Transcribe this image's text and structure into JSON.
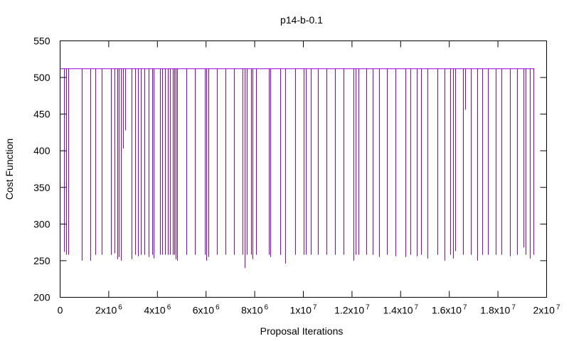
{
  "chart_data": {
    "type": "line",
    "title": "p14-b-0.1",
    "xlabel": "Proposal Iterations",
    "ylabel": "Cost Function",
    "xlim": [
      0,
      20000000
    ],
    "ylim": [
      200,
      550
    ],
    "grid": false,
    "legend": "none",
    "series_color": "#9400d3",
    "baseline_value": 512,
    "x_end": 19500000,
    "x_ticks": [
      {
        "value": 0,
        "base": "0",
        "exp": ""
      },
      {
        "value": 2000000,
        "base": "2x10",
        "exp": "6"
      },
      {
        "value": 4000000,
        "base": "4x10",
        "exp": "6"
      },
      {
        "value": 6000000,
        "base": "6x10",
        "exp": "6"
      },
      {
        "value": 8000000,
        "base": "8x10",
        "exp": "6"
      },
      {
        "value": 10000000,
        "base": "1x10",
        "exp": "7"
      },
      {
        "value": 12000000,
        "base": "1.2x10",
        "exp": "7"
      },
      {
        "value": 14000000,
        "base": "1.4x10",
        "exp": "7"
      },
      {
        "value": 16000000,
        "base": "1.6x10",
        "exp": "7"
      },
      {
        "value": 18000000,
        "base": "1.8x10",
        "exp": "7"
      },
      {
        "value": 20000000,
        "base": "2x10",
        "exp": "7"
      }
    ],
    "y_ticks": [
      200,
      250,
      300,
      350,
      400,
      450,
      500,
      550
    ],
    "dips": [
      [
        150000,
        262
      ],
      [
        250000,
        258
      ],
      [
        330000,
        258
      ],
      [
        900000,
        250
      ],
      [
        1250000,
        250
      ],
      [
        1450000,
        258
      ],
      [
        1700000,
        258
      ],
      [
        2100000,
        258
      ],
      [
        2250000,
        260
      ],
      [
        2350000,
        252
      ],
      [
        2420000,
        255
      ],
      [
        2500000,
        250
      ],
      [
        2600000,
        403
      ],
      [
        2680000,
        428
      ],
      [
        2950000,
        252
      ],
      [
        3080000,
        258
      ],
      [
        3200000,
        256
      ],
      [
        3330000,
        258
      ],
      [
        3470000,
        258
      ],
      [
        3650000,
        255
      ],
      [
        3800000,
        258
      ],
      [
        3850000,
        253
      ],
      [
        4100000,
        258
      ],
      [
        4200000,
        258
      ],
      [
        4300000,
        258
      ],
      [
        4420000,
        258
      ],
      [
        4530000,
        258
      ],
      [
        4620000,
        258
      ],
      [
        4700000,
        258
      ],
      [
        4750000,
        252
      ],
      [
        4800000,
        250
      ],
      [
        5200000,
        258
      ],
      [
        5550000,
        258
      ],
      [
        5950000,
        258
      ],
      [
        6020000,
        250
      ],
      [
        6100000,
        255
      ],
      [
        6450000,
        258
      ],
      [
        6800000,
        258
      ],
      [
        7150000,
        258
      ],
      [
        7500000,
        258
      ],
      [
        7600000,
        240
      ],
      [
        7680000,
        258
      ],
      [
        7850000,
        258
      ],
      [
        7920000,
        252
      ],
      [
        8050000,
        258
      ],
      [
        8580000,
        258
      ],
      [
        8650000,
        255
      ],
      [
        9050000,
        258
      ],
      [
        9250000,
        246
      ],
      [
        9650000,
        258
      ],
      [
        10000000,
        258
      ],
      [
        10100000,
        258
      ],
      [
        10300000,
        258
      ],
      [
        10600000,
        258
      ],
      [
        10950000,
        258
      ],
      [
        11300000,
        258
      ],
      [
        11650000,
        258
      ],
      [
        12050000,
        250
      ],
      [
        12150000,
        258
      ],
      [
        12280000,
        258
      ],
      [
        12600000,
        258
      ],
      [
        12850000,
        258
      ],
      [
        13100000,
        255
      ],
      [
        13450000,
        258
      ],
      [
        13800000,
        256
      ],
      [
        14200000,
        255
      ],
      [
        14400000,
        258
      ],
      [
        14650000,
        256
      ],
      [
        14850000,
        258
      ],
      [
        15100000,
        253
      ],
      [
        15500000,
        258
      ],
      [
        15800000,
        250
      ],
      [
        16050000,
        258
      ],
      [
        16150000,
        253
      ],
      [
        16230000,
        263
      ],
      [
        16550000,
        258
      ],
      [
        16650000,
        456
      ],
      [
        16900000,
        258
      ],
      [
        17150000,
        250
      ],
      [
        17350000,
        258
      ],
      [
        17600000,
        258
      ],
      [
        17900000,
        258
      ],
      [
        18150000,
        258
      ],
      [
        18500000,
        256
      ],
      [
        18800000,
        258
      ],
      [
        19050000,
        268
      ],
      [
        19150000,
        258
      ],
      [
        19300000,
        253
      ],
      [
        19450000,
        258
      ]
    ]
  }
}
